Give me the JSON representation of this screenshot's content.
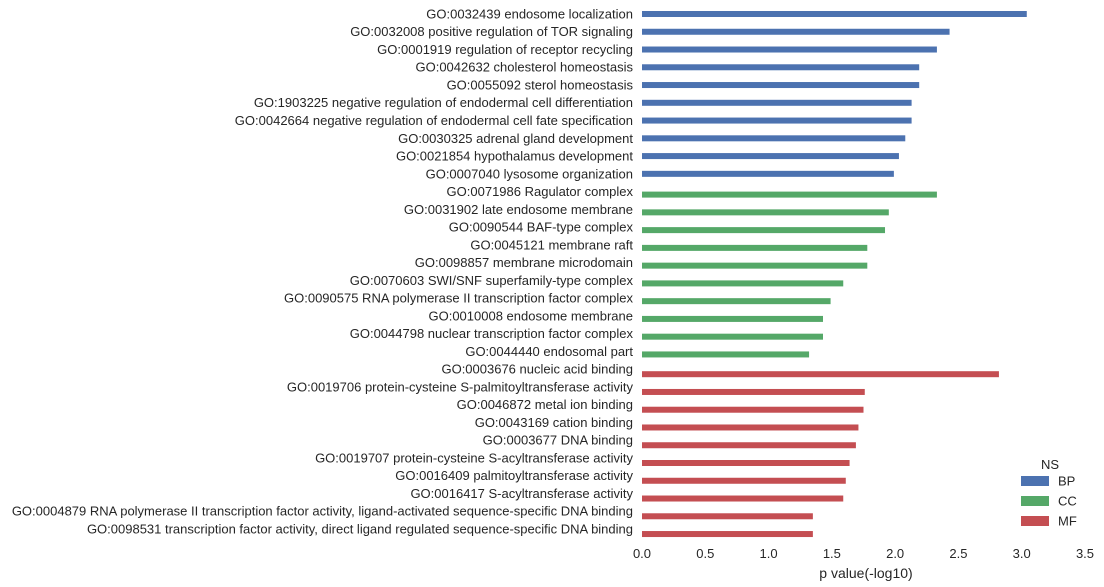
{
  "chart_data": {
    "type": "bar",
    "orientation": "horizontal",
    "xlabel": "p value(-log10)",
    "ylabel": "",
    "xlim": [
      0,
      3.5
    ],
    "xticks": [
      "0.0",
      "0.5",
      "1.0",
      "1.5",
      "2.0",
      "2.5",
      "3.0",
      "3.5"
    ],
    "grid": false,
    "legend": {
      "title": "NS",
      "placement": "bottom-right",
      "entries": [
        {
          "label": "BP",
          "color": "#4c72b0"
        },
        {
          "label": "CC",
          "color": "#55a868"
        },
        {
          "label": "MF",
          "color": "#c44e52"
        }
      ]
    },
    "bars": [
      {
        "label": "GO:0032439 endosome localization",
        "value": 3.04,
        "ns": "BP"
      },
      {
        "label": "GO:0032008 positive regulation of TOR signaling",
        "value": 2.43,
        "ns": "BP"
      },
      {
        "label": "GO:0001919 regulation of receptor recycling",
        "value": 2.33,
        "ns": "BP"
      },
      {
        "label": "GO:0042632 cholesterol homeostasis",
        "value": 2.19,
        "ns": "BP"
      },
      {
        "label": "GO:0055092 sterol homeostasis",
        "value": 2.19,
        "ns": "BP"
      },
      {
        "label": "GO:1903225 negative regulation of endodermal cell differentiation",
        "value": 2.13,
        "ns": "BP"
      },
      {
        "label": "GO:0042664 negative regulation of endodermal cell fate specification",
        "value": 2.13,
        "ns": "BP"
      },
      {
        "label": "GO:0030325 adrenal gland development",
        "value": 2.08,
        "ns": "BP"
      },
      {
        "label": "GO:0021854 hypothalamus development",
        "value": 2.03,
        "ns": "BP"
      },
      {
        "label": "GO:0007040 lysosome organization",
        "value": 1.99,
        "ns": "BP"
      },
      {
        "label": "GO:0071986 Ragulator complex",
        "value": 2.33,
        "ns": "CC"
      },
      {
        "label": "GO:0031902 late endosome membrane",
        "value": 1.95,
        "ns": "CC"
      },
      {
        "label": "GO:0090544 BAF-type complex",
        "value": 1.92,
        "ns": "CC"
      },
      {
        "label": "GO:0045121 membrane raft",
        "value": 1.78,
        "ns": "CC"
      },
      {
        "label": "GO:0098857 membrane microdomain",
        "value": 1.78,
        "ns": "CC"
      },
      {
        "label": "GO:0070603 SWI/SNF superfamily-type complex",
        "value": 1.59,
        "ns": "CC"
      },
      {
        "label": "GO:0090575 RNA polymerase II transcription factor complex",
        "value": 1.49,
        "ns": "CC"
      },
      {
        "label": "GO:0010008 endosome membrane",
        "value": 1.43,
        "ns": "CC"
      },
      {
        "label": "GO:0044798 nuclear transcription factor complex",
        "value": 1.43,
        "ns": "CC"
      },
      {
        "label": "GO:0044440 endosomal part",
        "value": 1.32,
        "ns": "CC"
      },
      {
        "label": "GO:0003676 nucleic acid binding",
        "value": 2.82,
        "ns": "MF"
      },
      {
        "label": "GO:0019706 protein-cysteine S-palmitoyltransferase activity",
        "value": 1.76,
        "ns": "MF"
      },
      {
        "label": "GO:0046872 metal ion binding",
        "value": 1.75,
        "ns": "MF"
      },
      {
        "label": "GO:0043169 cation binding",
        "value": 1.71,
        "ns": "MF"
      },
      {
        "label": "GO:0003677 DNA binding",
        "value": 1.69,
        "ns": "MF"
      },
      {
        "label": "GO:0019707 protein-cysteine S-acyltransferase activity",
        "value": 1.64,
        "ns": "MF"
      },
      {
        "label": "GO:0016409 palmitoyltransferase activity",
        "value": 1.61,
        "ns": "MF"
      },
      {
        "label": "GO:0016417 S-acyltransferase activity",
        "value": 1.59,
        "ns": "MF"
      },
      {
        "label": "GO:0004879 RNA polymerase II transcription factor activity, ligand-activated sequence-specific DNA binding",
        "value": 1.35,
        "ns": "MF"
      },
      {
        "label": "GO:0098531 transcription factor activity, direct ligand regulated sequence-specific DNA binding",
        "value": 1.35,
        "ns": "MF"
      }
    ]
  }
}
